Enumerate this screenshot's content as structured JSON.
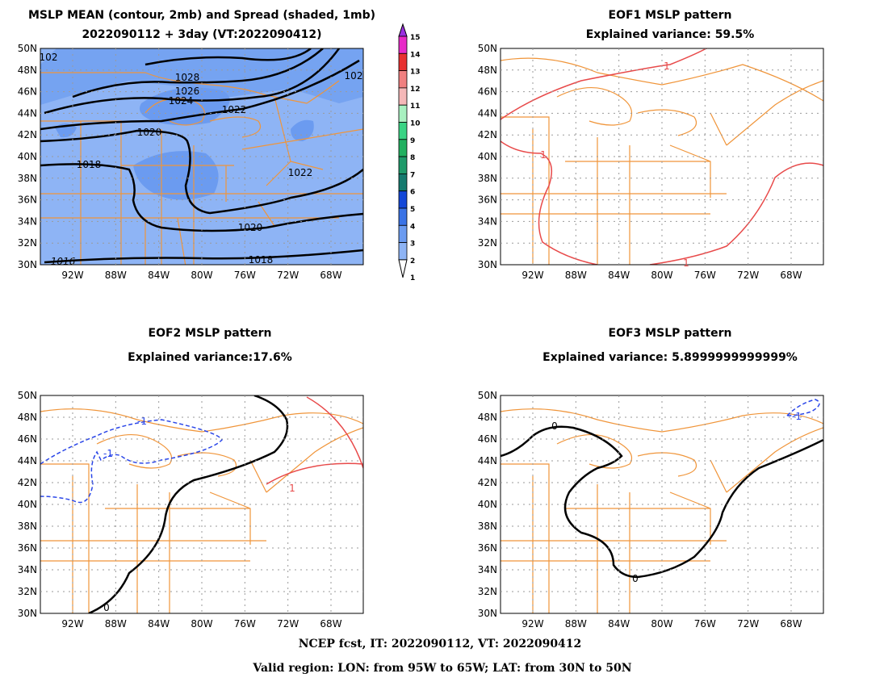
{
  "panels": [
    {
      "id": "p1",
      "title1": "MSLP MEAN (contour, 2mb) and Spread (shaded, 1mb)",
      "title2": "2022090112 + 3day (VT:2022090412)"
    },
    {
      "id": "p2",
      "title1": "EOF1 MSLP pattern",
      "title2": "Explained variance: 59.5%"
    },
    {
      "id": "p3",
      "title1": "EOF2 MSLP pattern",
      "title2": "Explained variance:17.6%"
    },
    {
      "id": "p4",
      "title1": "EOF3 MSLP pattern",
      "title2": "Explained variance: 5.8999999999999%"
    }
  ],
  "axes": {
    "lat_labels": [
      "30N",
      "32N",
      "34N",
      "36N",
      "38N",
      "40N",
      "42N",
      "44N",
      "46N",
      "48N",
      "50N"
    ],
    "lon_labels": [
      "92W",
      "88W",
      "84W",
      "80W",
      "76W",
      "72W",
      "68W"
    ]
  },
  "colorbar": {
    "labels": [
      "1",
      "2",
      "3",
      "4",
      "5",
      "6",
      "7",
      "8",
      "9",
      "10",
      "11",
      "12",
      "13",
      "14",
      "15"
    ],
    "colors": [
      "#ffffff",
      "#8eb4f5",
      "#6b9bf0",
      "#3a73e6",
      "#1448d8",
      "#157a6e",
      "#1e9a6a",
      "#21b060",
      "#3ad484",
      "#a8f0c0",
      "#f5b8b8",
      "#f08080",
      "#e83030",
      "#e82ac8",
      "#9a30e0"
    ]
  },
  "contour_labels": {
    "p1": [
      "1028",
      "1026",
      "1024",
      "1022",
      "1020",
      "1018",
      "1022",
      "1020",
      "1018",
      "1016",
      "102",
      "102"
    ],
    "p2": [
      "1",
      "1",
      "1"
    ],
    "p3": [
      "-1",
      "-1",
      "1",
      "0"
    ],
    "p4": [
      "0",
      "0",
      "-1"
    ]
  },
  "colors": {
    "land_border": "#f0953a",
    "grid": "#9a9a9a",
    "mean_contour": "#000000",
    "spread_base": "#8eb4f5",
    "spread_mid": "#6b9bf0",
    "positive": "#e84a4a",
    "negative": "#2a46e8"
  },
  "footer": {
    "line1": "NCEP fcst, IT: 2022090112, VT: 2022090412",
    "line2": "Valid region: LON: from 95W to 65W; LAT: from 30N to 50N"
  }
}
